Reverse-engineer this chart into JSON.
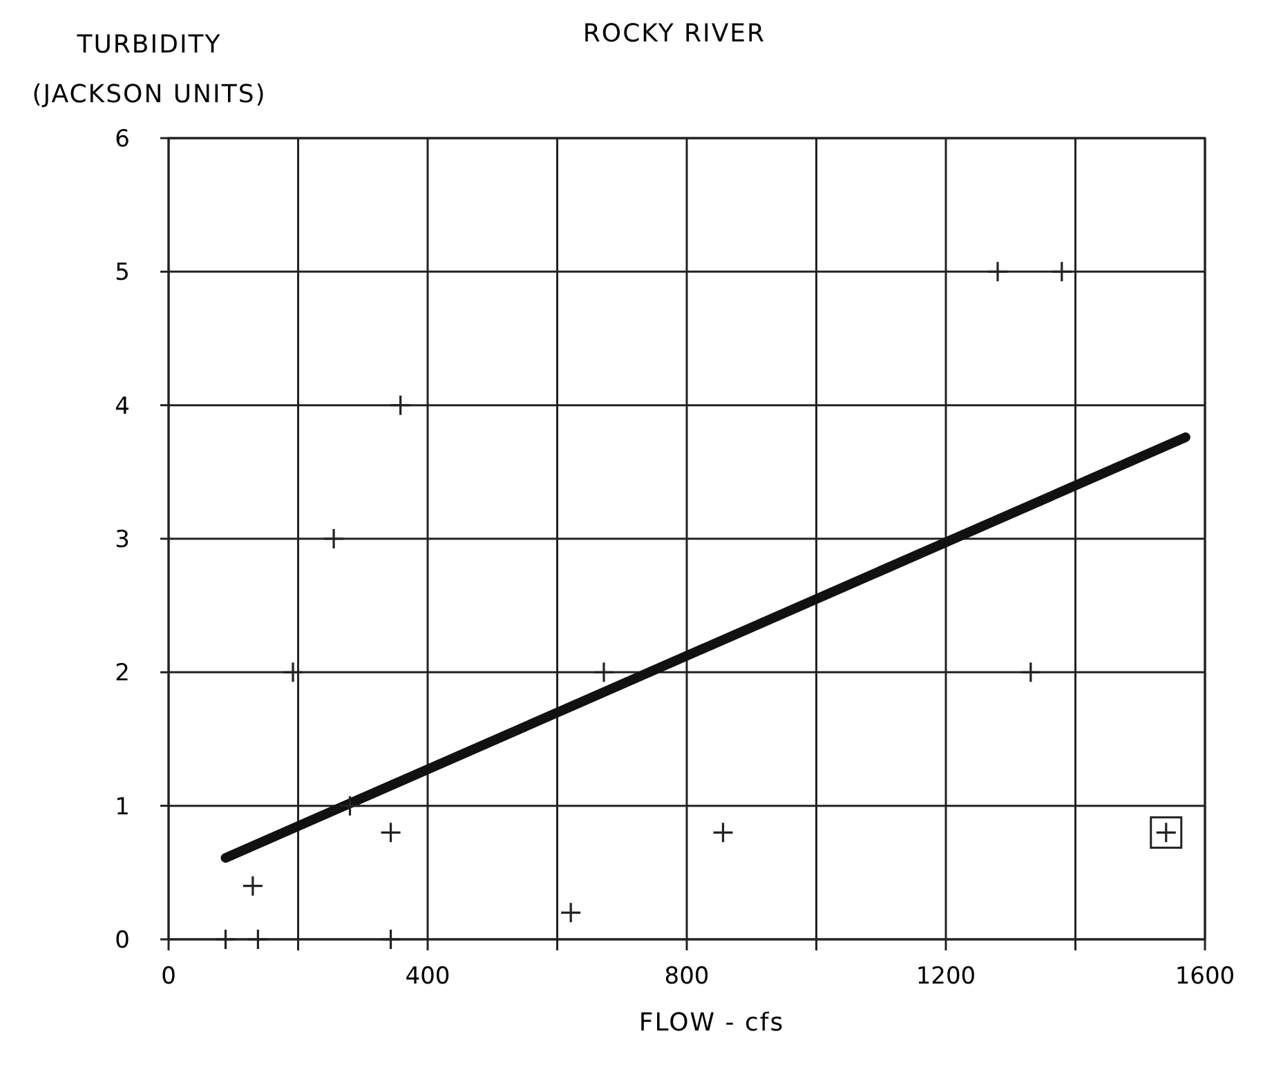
{
  "chart_data": {
    "type": "scatter",
    "title": "ROCKY RIVER",
    "xlabel": "FLOW - cfs",
    "ylabel": "TURBIDITY (JACKSON UNITS)",
    "xlim": [
      0,
      1600
    ],
    "ylim": [
      0,
      6
    ],
    "xticks": [
      0,
      {
        "value": 200,
        "label": null
      },
      400,
      {
        "value": 600,
        "label": null
      },
      800,
      {
        "value": 1000,
        "label": null
      },
      1200,
      {
        "value": 1400,
        "label": null
      },
      1600
    ],
    "yticks": [
      0,
      1,
      2,
      3,
      4,
      5,
      6
    ],
    "grid": true,
    "marker": "cross",
    "series": [
      {
        "color": "#222222",
        "x": [
          88,
          138,
          343,
          130,
          280,
          343,
          621,
          358,
          255,
          192,
          672,
          856,
          1331,
          1280,
          1379,
          1540
        ],
        "values": [
          0,
          0,
          0,
          0.4,
          1,
          0.8,
          0.2,
          4,
          3,
          2,
          2,
          0.8,
          2,
          5,
          5,
          0.8
        ]
      },
      {
        "type": "line",
        "color": "#111111",
        "marker": "none",
        "x": [
          88,
          1570
        ],
        "values": [
          0.61,
          3.76
        ]
      }
    ]
  }
}
